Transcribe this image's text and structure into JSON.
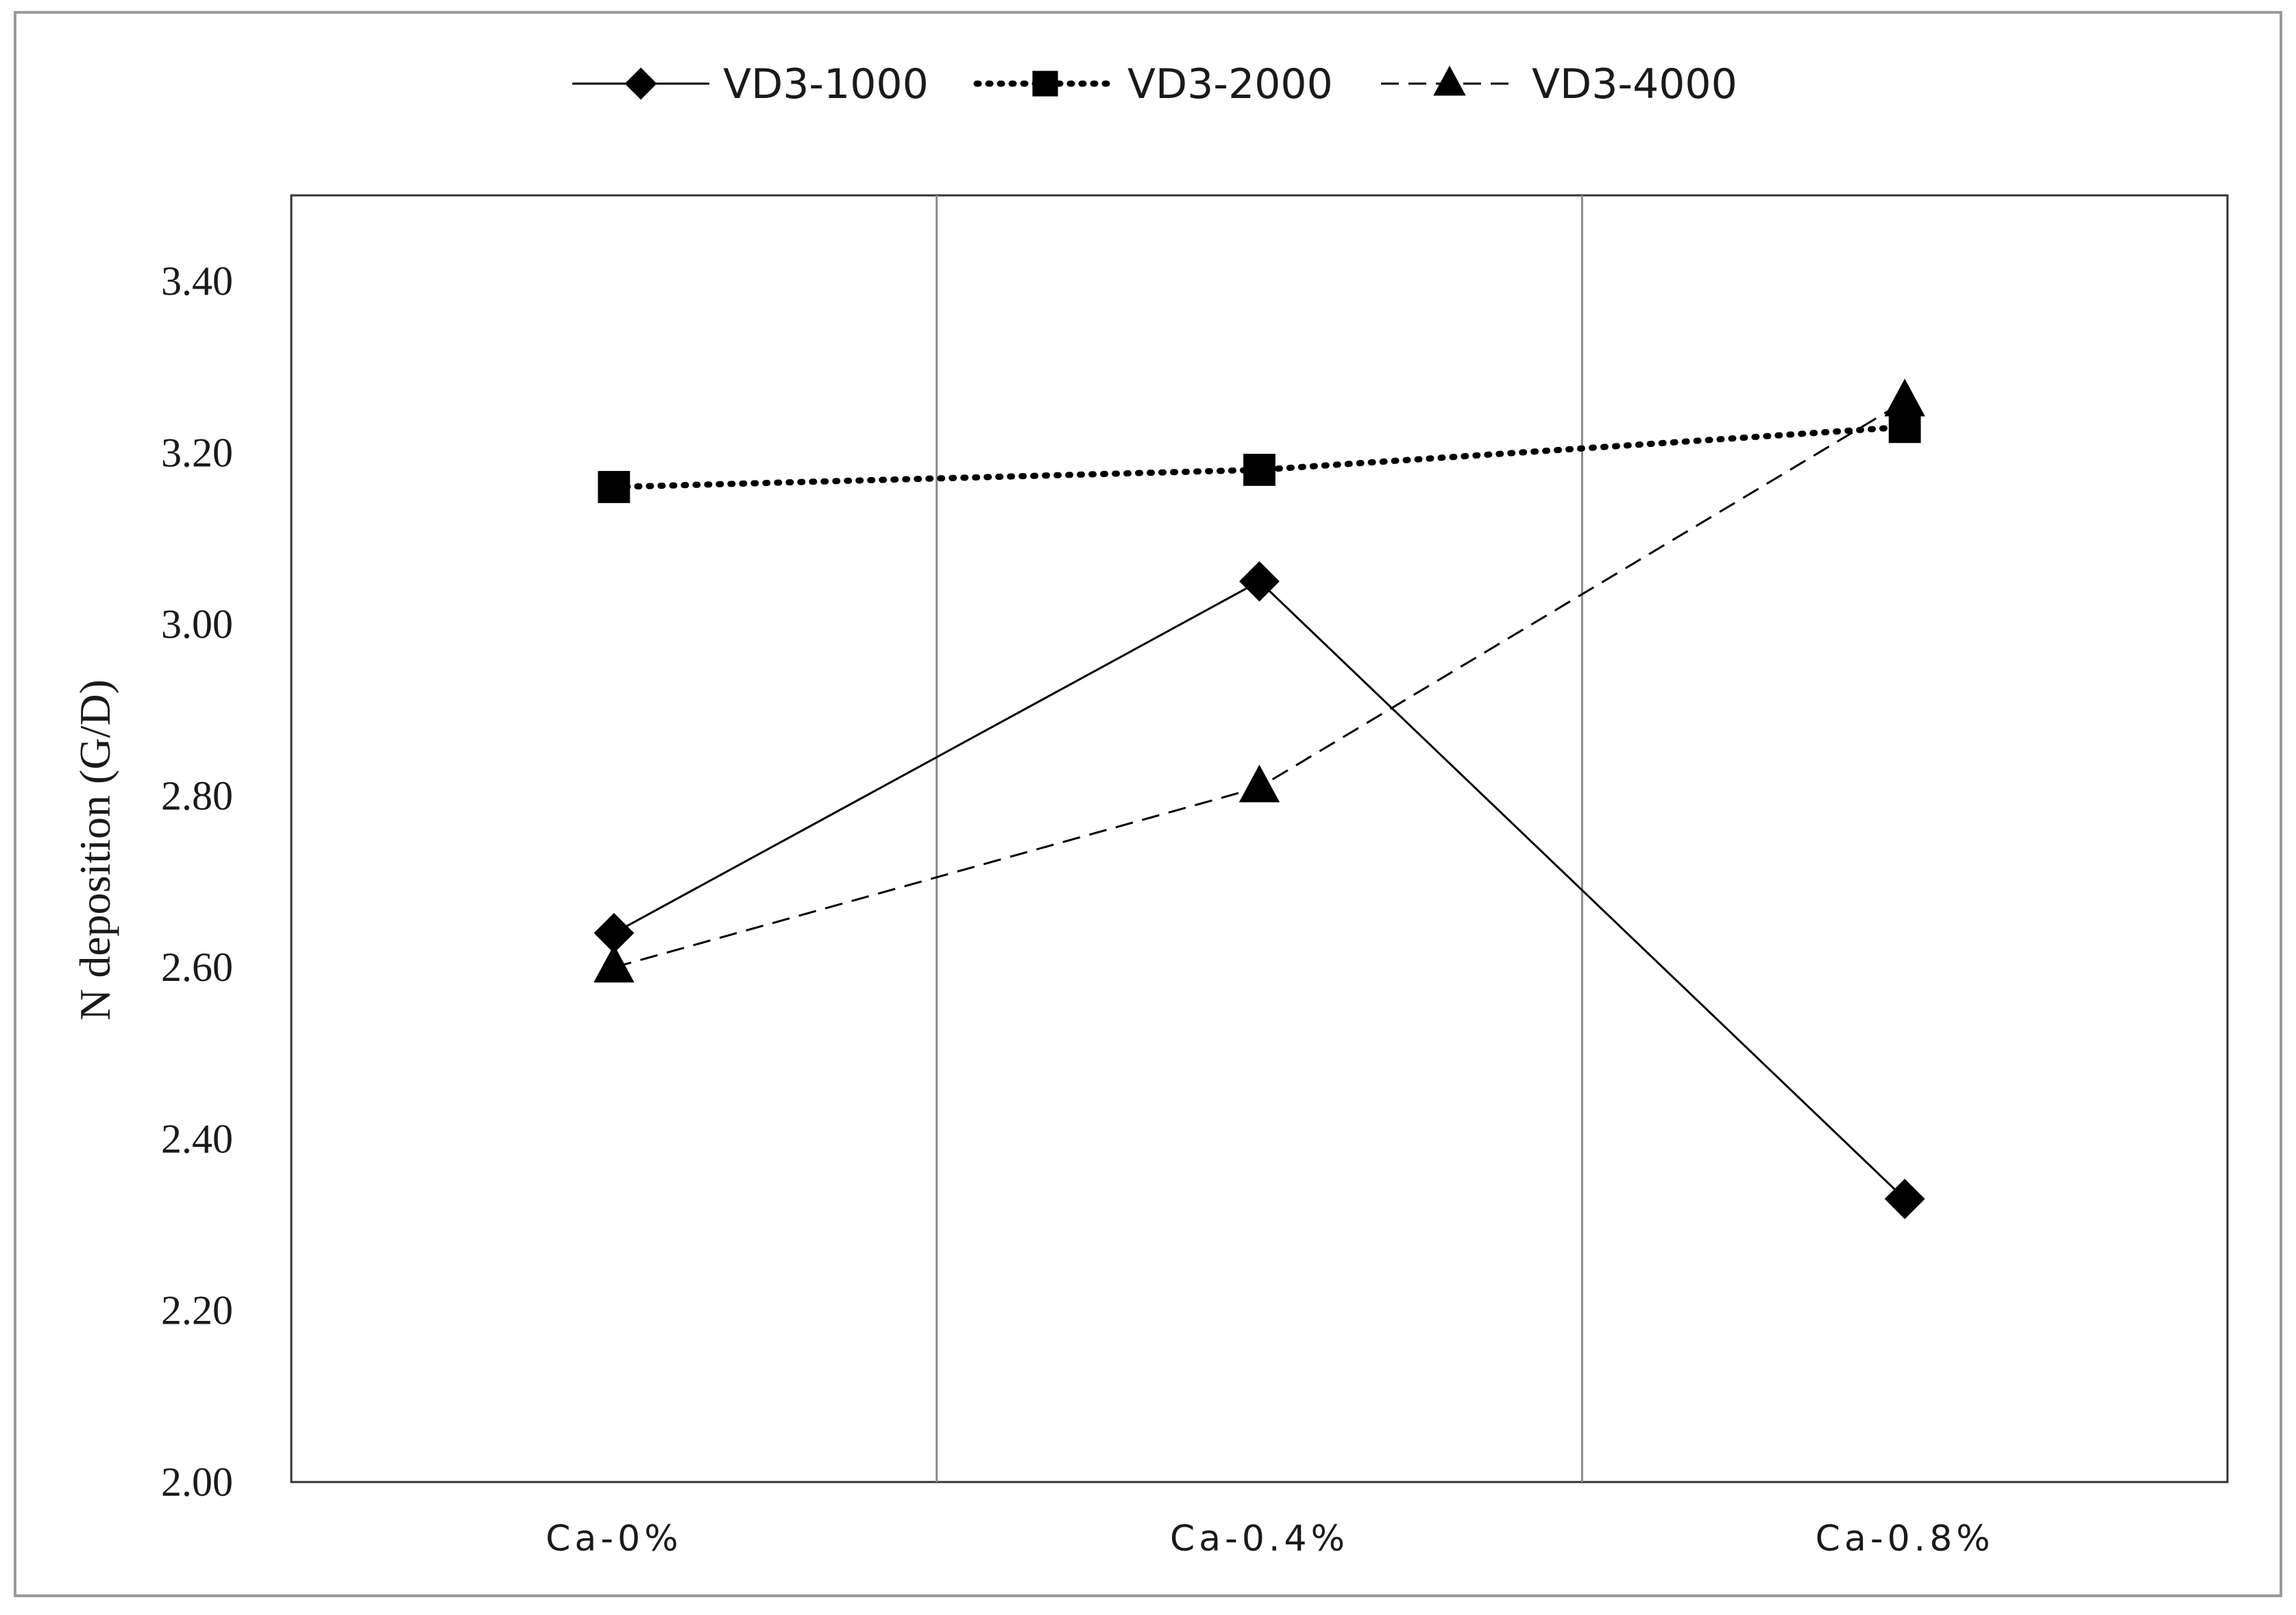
{
  "chart_data": {
    "type": "line",
    "title": "",
    "xlabel": "",
    "ylabel": "N deposition (G/D)",
    "categories": [
      "Ca-0%",
      "Ca-0.4%",
      "Ca-0.8%"
    ],
    "ylim": [
      2.0,
      3.5
    ],
    "yticks": [
      "2.00",
      "2.20",
      "2.40",
      "2.60",
      "2.80",
      "3.00",
      "3.20",
      "3.40"
    ],
    "grid": "vertical category separators",
    "legend_position": "top-center",
    "series": [
      {
        "name": "VD3-1000",
        "values": [
          2.64,
          3.05,
          2.33
        ],
        "marker": "diamond",
        "line": "solid",
        "color": "#000000"
      },
      {
        "name": "VD3-2000",
        "values": [
          3.16,
          3.18,
          3.23
        ],
        "marker": "square",
        "line": "dotted",
        "color": "#000000"
      },
      {
        "name": "VD3-4000",
        "values": [
          2.6,
          2.81,
          3.26
        ],
        "marker": "triangle",
        "line": "dashed",
        "color": "#000000"
      }
    ]
  }
}
